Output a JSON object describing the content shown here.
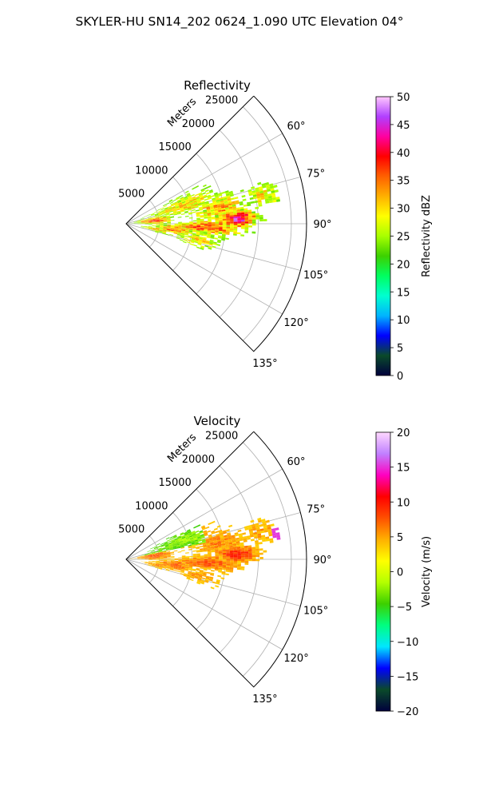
{
  "figure_title": "SKYLER-HU  SN14_202  0624_1.090 UTC Elevation 04°",
  "chart_data": [
    {
      "type": "polar-sector",
      "title": "Reflectivity",
      "radial_axis_label": "Meters",
      "radial_ticks": [
        "5000",
        "10000",
        "15000",
        "20000",
        "25000"
      ],
      "radial_tick_values": [
        5000,
        10000,
        15000,
        20000,
        25000
      ],
      "theta_range_deg": [
        45,
        135
      ],
      "theta_ticks": [
        "60°",
        "75°",
        "90°",
        "105°",
        "120°",
        "135°"
      ],
      "theta_tick_values": [
        60,
        75,
        90,
        105,
        120,
        135
      ],
      "grid": true,
      "colorbar": {
        "label": "Reflectivity dBZ",
        "range": [
          0,
          50
        ],
        "ticks": [
          "0",
          "5",
          "10",
          "15",
          "20",
          "25",
          "30",
          "35",
          "40",
          "45",
          "50"
        ],
        "tick_values": [
          0,
          5,
          10,
          15,
          20,
          25,
          30,
          35,
          40,
          45,
          50
        ]
      }
    },
    {
      "type": "polar-sector",
      "title": "Velocity",
      "radial_axis_label": "Meters",
      "radial_ticks": [
        "5000",
        "10000",
        "15000",
        "20000",
        "25000"
      ],
      "radial_tick_values": [
        5000,
        10000,
        15000,
        20000,
        25000
      ],
      "theta_range_deg": [
        45,
        135
      ],
      "theta_ticks": [
        "60°",
        "75°",
        "90°",
        "105°",
        "120°",
        "135°"
      ],
      "theta_tick_values": [
        60,
        75,
        90,
        105,
        120,
        135
      ],
      "grid": true,
      "colorbar": {
        "label": "Velocity (m/s)",
        "range": [
          -20,
          20
        ],
        "ticks": [
          "−20",
          "−15",
          "−10",
          "−5",
          "0",
          "5",
          "10",
          "15",
          "20"
        ],
        "tick_values": [
          -20,
          -15,
          -10,
          -5,
          0,
          5,
          10,
          15,
          20
        ]
      }
    }
  ],
  "colors": {
    "reflectivity_stops": [
      "#00003c",
      "#0a4a2a",
      "#0000ff",
      "#00b4ff",
      "#00ffd0",
      "#00ff60",
      "#3cd000",
      "#a8ff00",
      "#ffff00",
      "#ffb000",
      "#ff6000",
      "#ff0000",
      "#ff00a0",
      "#b040ff",
      "#ffc8ff"
    ],
    "velocity_stops": [
      "#00003c",
      "#0a4a2a",
      "#0000ff",
      "#00e6ff",
      "#00ff80",
      "#3cd000",
      "#b4ff00",
      "#ffff00",
      "#ffb000",
      "#ff5000",
      "#ff0000",
      "#ff00c0",
      "#c080ff",
      "#ffd8ff"
    ]
  }
}
